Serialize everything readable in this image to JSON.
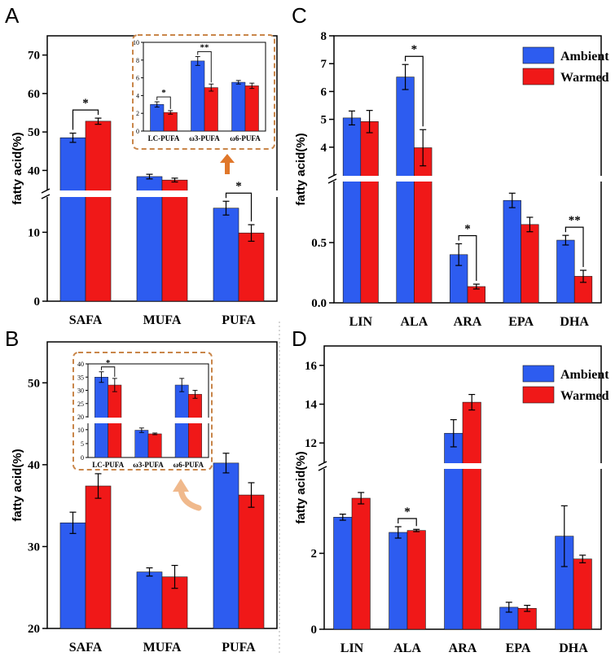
{
  "colors": {
    "ambient": "#2d5cf0",
    "warmed": "#f01818",
    "dash": "#c9864a",
    "arrow_a": "#e0772a",
    "arrow_b": "#f0b98c"
  },
  "chart_data": [
    {
      "id": "A",
      "type": "bar",
      "panel_label": "A",
      "ylabel": "fatty acid(%)",
      "categories": [
        "SAFA",
        "MUFA",
        "PUFA"
      ],
      "series": [
        {
          "name": "Ambient",
          "values": [
            48.5,
            38.4,
            13.5
          ],
          "errors": [
            1.2,
            0.6,
            1.0
          ]
        },
        {
          "name": "Warmed",
          "values": [
            52.8,
            37.5,
            9.9
          ],
          "errors": [
            0.8,
            0.5,
            1.2
          ]
        }
      ],
      "broken_axis": {
        "lower": [
          0,
          15
        ],
        "upper": [
          35,
          75
        ]
      },
      "yticks_lower": [
        0,
        10
      ],
      "yticks_upper": [
        40,
        50,
        60,
        70
      ],
      "significance": [
        {
          "category": 0,
          "label": "*"
        },
        {
          "category": 2,
          "label": "*"
        }
      ],
      "inset": {
        "categories": [
          "LC-PUFA",
          "ω3-PUFA",
          "ω6-PUFA"
        ],
        "ylim": [
          0,
          10
        ],
        "yticks": [
          0,
          2,
          4,
          6,
          8,
          10
        ],
        "series": [
          {
            "name": "Ambient",
            "values": [
              3.0,
              7.9,
              5.5
            ],
            "errors": [
              0.3,
              0.5,
              0.2
            ]
          },
          {
            "name": "Warmed",
            "values": [
              2.1,
              4.9,
              5.1
            ],
            "errors": [
              0.2,
              0.4,
              0.3
            ]
          }
        ],
        "significance": [
          {
            "category": 0,
            "label": "*"
          },
          {
            "category": 1,
            "label": "**"
          }
        ]
      }
    },
    {
      "id": "B",
      "type": "bar",
      "panel_label": "B",
      "ylabel": "fatty acid(%)",
      "categories": [
        "SAFA",
        "MUFA",
        "PUFA"
      ],
      "ylim": [
        20,
        55
      ],
      "yticks": [
        20,
        30,
        40,
        50
      ],
      "series": [
        {
          "name": "Ambient",
          "values": [
            32.9,
            26.9,
            40.2
          ],
          "errors": [
            1.3,
            0.5,
            1.2
          ]
        },
        {
          "name": "Warmed",
          "values": [
            37.4,
            26.3,
            36.3
          ],
          "errors": [
            1.5,
            1.4,
            1.5
          ]
        }
      ],
      "inset": {
        "categories": [
          "LC-PUFA",
          "ω3-PUFA",
          "ω6-PUFA"
        ],
        "broken_axis": {
          "lower": [
            0,
            12
          ],
          "upper": [
            20,
            40
          ]
        },
        "yticks_lower": [
          0,
          5,
          10
        ],
        "yticks_upper": [
          20,
          25,
          30,
          35,
          40
        ],
        "series": [
          {
            "name": "Ambient",
            "values": [
              35.0,
              9.8,
              32.0
            ],
            "errors": [
              2.0,
              0.8,
              2.5
            ]
          },
          {
            "name": "Warmed",
            "values": [
              32.0,
              8.5,
              28.5
            ],
            "errors": [
              2.5,
              0.3,
              1.5
            ]
          }
        ],
        "significance": [
          {
            "category": 0,
            "label": "*"
          }
        ]
      }
    },
    {
      "id": "C",
      "type": "bar",
      "panel_label": "C",
      "ylabel": "fatty acid(%)",
      "categories": [
        "LIN",
        "ALA",
        "ARA",
        "EPA",
        "DHA"
      ],
      "series": [
        {
          "name": "Ambient",
          "values": [
            5.05,
            6.52,
            0.4,
            0.85,
            0.52
          ],
          "errors": [
            0.25,
            0.45,
            0.09,
            0.06,
            0.04
          ]
        },
        {
          "name": "Warmed",
          "values": [
            4.92,
            3.98,
            0.135,
            0.65,
            0.22
          ],
          "errors": [
            0.4,
            0.65,
            0.02,
            0.06,
            0.05
          ]
        }
      ],
      "broken_axis": {
        "lower": [
          0,
          1.0
        ],
        "upper": [
          3,
          8
        ]
      },
      "yticks_lower": [
        "0.0",
        "0.5"
      ],
      "yticks_upper": [
        4,
        5,
        6,
        7,
        8
      ],
      "significance": [
        {
          "category": 1,
          "label": "*"
        },
        {
          "category": 2,
          "label": "*"
        },
        {
          "category": 4,
          "label": "**"
        }
      ],
      "legend": [
        "Ambient",
        "Warmed"
      ]
    },
    {
      "id": "D",
      "type": "bar",
      "panel_label": "D",
      "ylabel": "fatty acid(%)",
      "categories": [
        "LIN",
        "ALA",
        "ARA",
        "EPA",
        "DHA"
      ],
      "series": [
        {
          "name": "Ambient",
          "values": [
            2.95,
            2.55,
            12.5,
            0.58,
            2.45
          ],
          "errors": [
            0.08,
            0.15,
            0.7,
            0.13,
            0.8
          ]
        },
        {
          "name": "Warmed",
          "values": [
            3.45,
            2.6,
            14.1,
            0.55,
            1.85
          ],
          "errors": [
            0.15,
            0.03,
            0.4,
            0.08,
            0.1
          ]
        }
      ],
      "broken_axis": {
        "lower": [
          0,
          4.2
        ],
        "upper": [
          11,
          17
        ]
      },
      "yticks_lower": [
        0,
        2
      ],
      "yticks_upper": [
        12,
        14,
        16
      ],
      "significance": [
        {
          "category": 1,
          "label": "*"
        }
      ],
      "legend": [
        "Ambient",
        "Warmed"
      ]
    }
  ]
}
